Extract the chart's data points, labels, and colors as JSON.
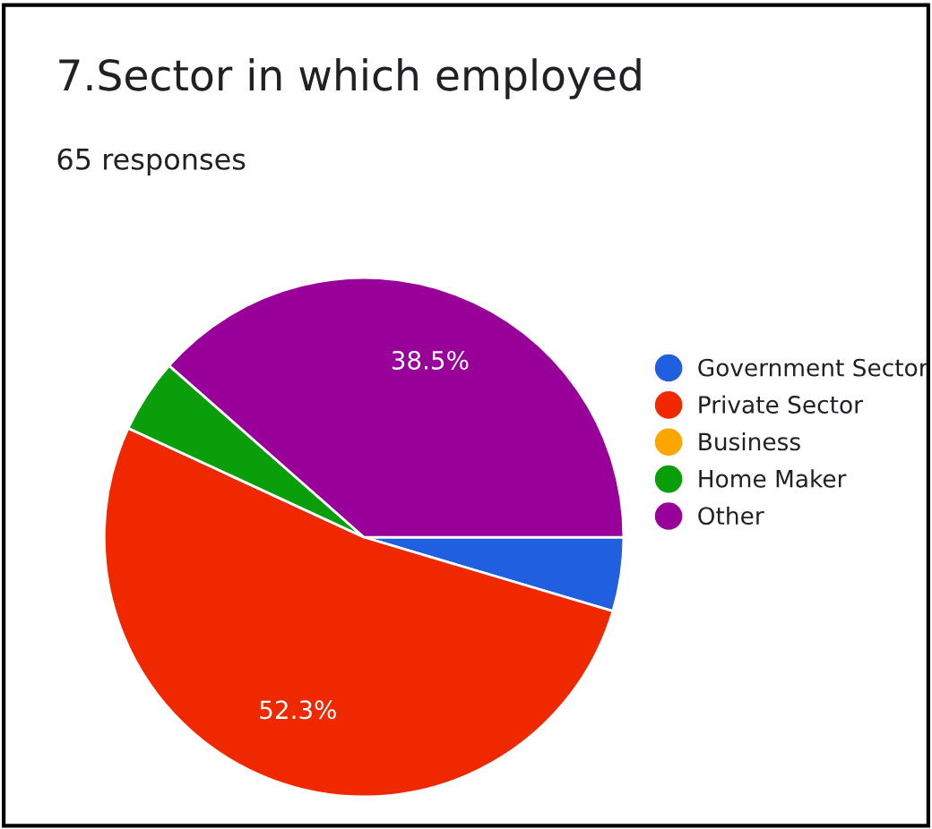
{
  "chart_data": {
    "type": "pie",
    "title": "7.Sector in which employed",
    "subtitle": "65 responses",
    "categories": [
      "Government Sector",
      "Private Sector",
      "Business",
      "Home Maker",
      "Other"
    ],
    "values": [
      4.6,
      52.3,
      0,
      4.6,
      38.5
    ],
    "value_labels": [
      null,
      "52.3%",
      null,
      null,
      "38.5%"
    ],
    "colors": [
      "#1f5fe0",
      "#f02800",
      "#ffa500",
      "#0a9e0a",
      "#990099"
    ],
    "legend": "right"
  }
}
